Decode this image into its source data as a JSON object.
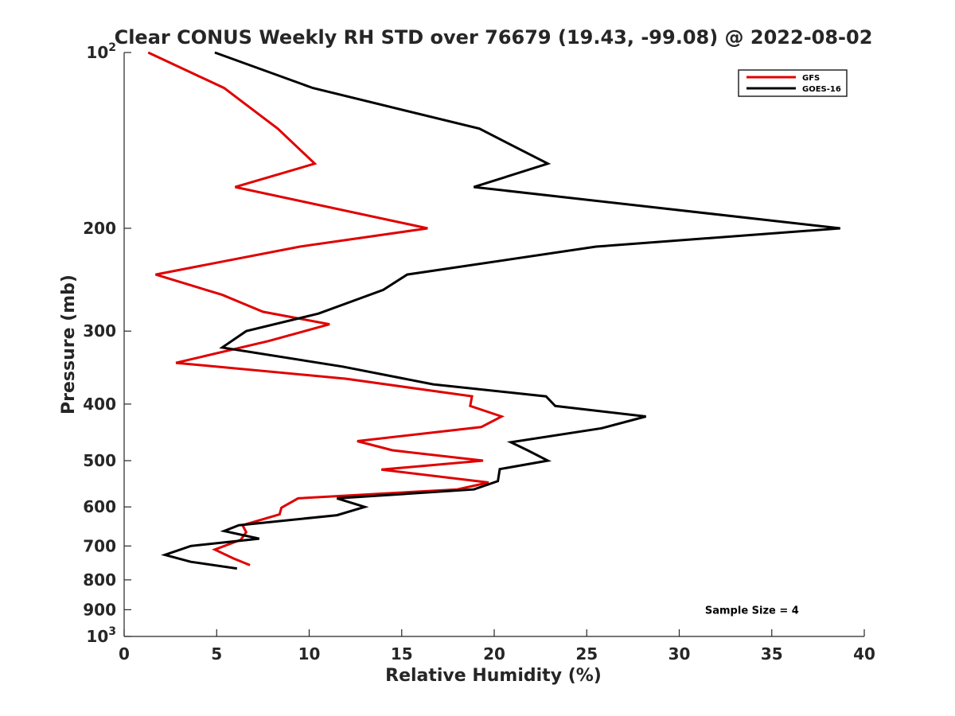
{
  "chart_data": {
    "type": "line",
    "title": "Clear CONUS Weekly RH STD over 76679 (19.43, -99.08) @ 2022-08-02",
    "xlabel": "Relative Humidity (%)",
    "ylabel": "Pressure (mb)",
    "xlim": [
      0,
      40
    ],
    "ylim": [
      100,
      1000
    ],
    "y_scale": "log",
    "y_reversed": true,
    "grid": false,
    "legend_position": "top-right",
    "x_ticks": [
      {
        "value": 0,
        "label": "0"
      },
      {
        "value": 5,
        "label": "5"
      },
      {
        "value": 10,
        "label": "10"
      },
      {
        "value": 15,
        "label": "15"
      },
      {
        "value": 20,
        "label": "20"
      },
      {
        "value": 25,
        "label": "25"
      },
      {
        "value": 30,
        "label": "30"
      },
      {
        "value": 35,
        "label": "35"
      },
      {
        "value": 40,
        "label": "40"
      }
    ],
    "y_ticks": [
      {
        "value": 100,
        "label": "10",
        "sup": "2"
      },
      {
        "value": 200,
        "label": "200",
        "sup": ""
      },
      {
        "value": 300,
        "label": "300",
        "sup": ""
      },
      {
        "value": 400,
        "label": "400",
        "sup": ""
      },
      {
        "value": 500,
        "label": "500",
        "sup": ""
      },
      {
        "value": 600,
        "label": "600",
        "sup": ""
      },
      {
        "value": 700,
        "label": "700",
        "sup": ""
      },
      {
        "value": 800,
        "label": "800",
        "sup": ""
      },
      {
        "value": 900,
        "label": "900",
        "sup": ""
      },
      {
        "value": 1000,
        "label": "10",
        "sup": "3"
      }
    ],
    "series": [
      {
        "name": "GFS",
        "color": "#e00000",
        "points": [
          [
            1.3,
            100
          ],
          [
            5.4,
            115
          ],
          [
            8.3,
            135
          ],
          [
            10.3,
            155
          ],
          [
            6.0,
            170
          ],
          [
            16.4,
            200
          ],
          [
            9.5,
            215
          ],
          [
            1.7,
            240
          ],
          [
            5.3,
            260
          ],
          [
            7.5,
            278
          ],
          [
            11.1,
            292
          ],
          [
            7.8,
            312
          ],
          [
            2.8,
            340
          ],
          [
            12.0,
            362
          ],
          [
            18.8,
            388
          ],
          [
            18.7,
            403
          ],
          [
            20.4,
            420
          ],
          [
            19.3,
            438
          ],
          [
            12.6,
            463
          ],
          [
            14.5,
            480
          ],
          [
            19.4,
            500
          ],
          [
            13.9,
            518
          ],
          [
            19.7,
            545
          ],
          [
            18.0,
            560
          ],
          [
            9.4,
            580
          ],
          [
            8.5,
            602
          ],
          [
            8.4,
            618
          ],
          [
            6.4,
            645
          ],
          [
            6.6,
            663
          ],
          [
            6.3,
            683
          ],
          [
            4.9,
            710
          ],
          [
            5.9,
            735
          ],
          [
            6.8,
            755
          ]
        ]
      },
      {
        "name": "GOES-16",
        "color": "#000000",
        "points": [
          [
            4.9,
            100
          ],
          [
            10.2,
            115
          ],
          [
            19.2,
            135
          ],
          [
            22.9,
            155
          ],
          [
            18.9,
            170
          ],
          [
            38.7,
            200
          ],
          [
            25.5,
            215
          ],
          [
            15.3,
            240
          ],
          [
            14.0,
            255
          ],
          [
            10.5,
            280
          ],
          [
            6.6,
            300
          ],
          [
            5.3,
            320
          ],
          [
            11.8,
            345
          ],
          [
            16.7,
            370
          ],
          [
            22.8,
            388
          ],
          [
            23.3,
            403
          ],
          [
            28.2,
            420
          ],
          [
            25.8,
            440
          ],
          [
            20.9,
            465
          ],
          [
            21.8,
            480
          ],
          [
            22.9,
            500
          ],
          [
            20.3,
            517
          ],
          [
            20.2,
            542
          ],
          [
            18.9,
            560
          ],
          [
            11.5,
            580
          ],
          [
            13.0,
            600
          ],
          [
            11.5,
            620
          ],
          [
            6.2,
            645
          ],
          [
            5.4,
            660
          ],
          [
            7.3,
            680
          ],
          [
            3.6,
            700
          ],
          [
            2.2,
            725
          ],
          [
            3.6,
            745
          ],
          [
            6.1,
            765
          ]
        ]
      }
    ],
    "annotations": [
      {
        "text": "Sample Size = 4",
        "x": 33.5,
        "y": 900
      }
    ]
  }
}
